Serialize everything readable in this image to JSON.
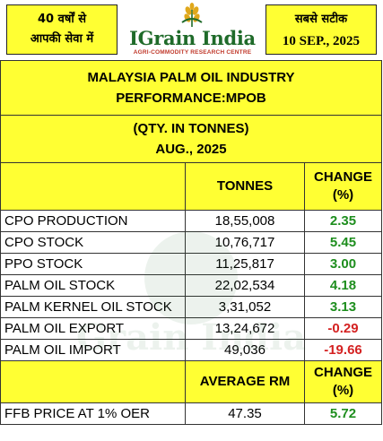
{
  "header": {
    "left_line1": "40 वर्षों से",
    "left_line2": "आपकी सेवा में",
    "brand": "IGrain India",
    "brand_sub": "AGRI-COMMODITY RESEARCH CENTRE",
    "right_line1": "सबसे सटीक",
    "date": "10 SEP., 2025"
  },
  "report": {
    "title_line1": "MALAYSIA PALM OIL INDUSTRY",
    "title_line2": "PERFORMANCE:MPOB",
    "qty_line": "(QTY. IN TONNES)",
    "month_line": "AUG., 2025"
  },
  "columns": {
    "tonnes": "TONNES",
    "change_line1": "CHANGE",
    "change_line2": "(%)"
  },
  "rows": [
    {
      "name": "CPO PRODUCTION",
      "value": "18,55,008",
      "change": "2.35"
    },
    {
      "name": "CPO STOCK",
      "value": "10,76,717",
      "change": "5.45"
    },
    {
      "name": "PPO STOCK",
      "value": "11,25,817",
      "change": "3.00"
    },
    {
      "name": "PALM OIL STOCK",
      "value": "22,02,534",
      "change": "4.18"
    },
    {
      "name": "PALM KERNEL OIL STOCK",
      "value": "3,31,052",
      "change": "3.13"
    },
    {
      "name": "PALM OIL EXPORT",
      "value": "13,24,672",
      "change": "-0.29"
    },
    {
      "name": "PALM OIL IMPORT",
      "value": "49,036",
      "change": "-19.66"
    }
  ],
  "price_columns": {
    "average": "AVERAGE RM",
    "change_line1": "CHANGE",
    "change_line2": "(%)"
  },
  "price_row": {
    "name": "FFB PRICE AT 1% OER",
    "value": "47.35",
    "change": "5.72"
  },
  "colors": {
    "positive": "#1e8e1e",
    "negative": "#d42222",
    "highlight": "#ffff33"
  }
}
